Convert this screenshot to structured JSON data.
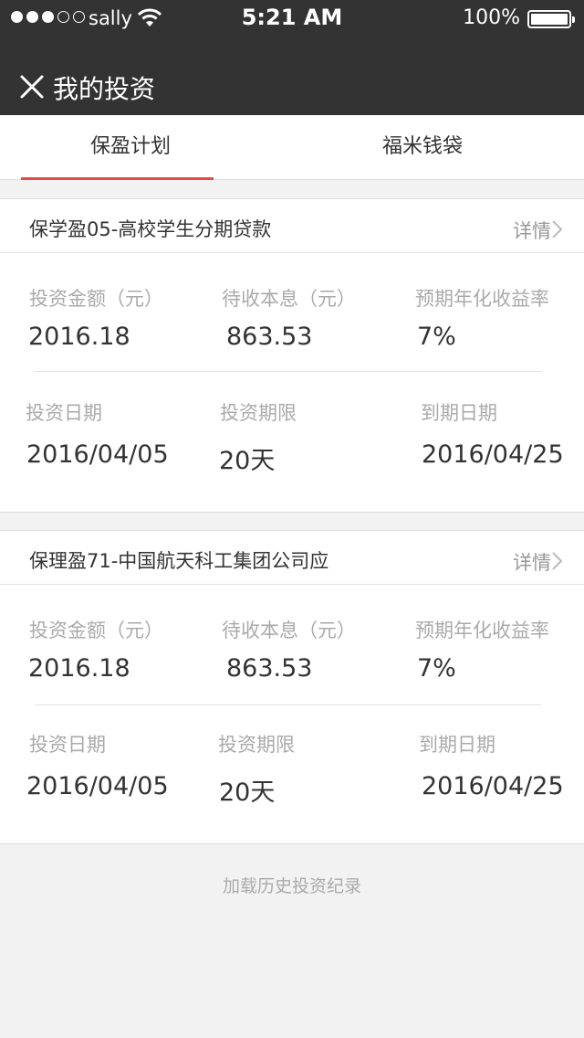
{
  "status_bar": {
    "carrier": "sally",
    "time": "5:21 AM",
    "battery": "100%"
  },
  "header": {
    "title": "我的投资",
    "close_icon": "close-icon"
  },
  "tabs": [
    {
      "label": "保盈计划",
      "active": true
    },
    {
      "label": "福米钱袋",
      "active": false
    }
  ],
  "cards": [
    {
      "title": "保学盈05-高校学生分期贷款",
      "detail_label": "详情",
      "fields": [
        {
          "label": "投资金额（元）",
          "value": "2016.18"
        },
        {
          "label": "待收本息（元）",
          "value": "863.53"
        },
        {
          "label": "预期年化收益率",
          "value": "7%"
        },
        {
          "label": "投资日期",
          "value": "2016/04/05"
        },
        {
          "label": "投资期限",
          "value": "20天"
        },
        {
          "label": "到期日期",
          "value": "2016/04/25"
        }
      ]
    },
    {
      "title": "保理盈71-中国航天科工集团公司应",
      "detail_label": "详情",
      "fields": [
        {
          "label": "投资金额（元）",
          "value": "2016.18"
        },
        {
          "label": "待收本息（元）",
          "value": "863.53"
        },
        {
          "label": "预期年化收益率",
          "value": "7%"
        },
        {
          "label": "投资日期",
          "value": "2016/04/05"
        },
        {
          "label": "投资期限",
          "value": "20天"
        },
        {
          "label": "到期日期",
          "value": "2016/04/25"
        }
      ]
    }
  ],
  "load_more": "加载历史投资纪录",
  "colors": {
    "header_bg": "#333333",
    "accent": "#e8474c",
    "label_gray": "#aaaaaa",
    "text_dark": "#333333"
  }
}
